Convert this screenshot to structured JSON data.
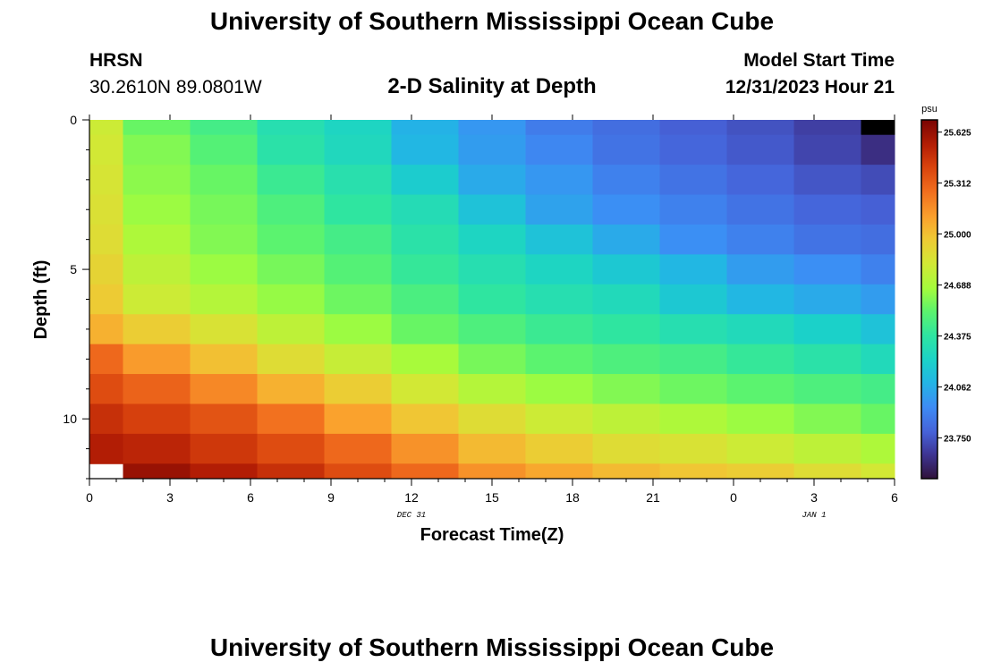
{
  "header": {
    "title": "University of Southern Mississippi Ocean Cube",
    "station": "HRSN",
    "coords": "30.2610N  89.0801W",
    "subtitle": "2-D Salinity at Depth",
    "model_start_label": "Model Start Time",
    "model_start_value": "12/31/2023 Hour 21"
  },
  "footer": {
    "title": "University of Southern Mississippi Ocean Cube"
  },
  "chart_data": {
    "type": "heatmap",
    "title": "2-D Salinity at Depth",
    "xlabel": "Forecast Time(Z)",
    "ylabel": "Depth (ft)",
    "x_tick_labels": [
      "0",
      "3",
      "6",
      "9",
      "12",
      "15",
      "18",
      "21",
      "0",
      "3",
      "6"
    ],
    "x_date_labels": [
      {
        "text": "DEC 31",
        "hour": 12
      },
      {
        "text": "JAN 1",
        "hour": 27
      }
    ],
    "x_range_hours": [
      0,
      30
    ],
    "y_tick_labels": [
      "0",
      "5",
      "10"
    ],
    "y_range_ft": [
      0,
      12
    ],
    "colorbar": {
      "unit": "psu",
      "min": 23.5,
      "max": 25.7,
      "tick_labels": [
        "25.625",
        "25.312",
        "25.000",
        "24.688",
        "24.375",
        "24.062",
        "23.750"
      ],
      "ticks": [
        25.625,
        25.3125,
        25.0,
        24.6875,
        24.375,
        24.0625,
        23.75
      ]
    },
    "cells": {
      "time_edges_hours": [
        0,
        1.25,
        3.75,
        6.25,
        8.75,
        11.25,
        13.75,
        16.25,
        18.75,
        21.25,
        23.75,
        26.25,
        28.75,
        30
      ],
      "depth_edges_ft": [
        0,
        0.5,
        1.5,
        2.5,
        3.5,
        4.5,
        5.5,
        6.5,
        7.5,
        8.5,
        9.5,
        10.5,
        11.5,
        12
      ],
      "salinity_psu": [
        [
          24.8,
          24.55,
          24.45,
          24.32,
          24.25,
          24.08,
          23.98,
          23.88,
          23.83,
          23.78,
          23.74,
          23.68,
          23.4
        ],
        [
          24.82,
          24.6,
          24.5,
          24.35,
          24.27,
          24.1,
          24.0,
          23.92,
          23.85,
          23.8,
          23.76,
          23.7,
          23.62
        ],
        [
          24.84,
          24.62,
          24.55,
          24.42,
          24.33,
          24.2,
          24.05,
          23.98,
          23.9,
          23.85,
          23.8,
          23.75,
          23.72
        ],
        [
          24.86,
          24.65,
          24.58,
          24.48,
          24.38,
          24.3,
          24.15,
          24.02,
          23.95,
          23.9,
          23.85,
          23.8,
          23.78
        ],
        [
          24.88,
          24.7,
          24.6,
          24.52,
          24.45,
          24.35,
          24.25,
          24.15,
          24.05,
          23.95,
          23.9,
          23.85,
          23.83
        ],
        [
          24.92,
          24.75,
          24.65,
          24.58,
          24.5,
          24.4,
          24.32,
          24.25,
          24.18,
          24.1,
          24.0,
          23.95,
          23.9
        ],
        [
          24.96,
          24.8,
          24.72,
          24.64,
          24.56,
          24.47,
          24.38,
          24.32,
          24.28,
          24.18,
          24.1,
          24.05,
          24.0
        ],
        [
          25.05,
          24.95,
          24.85,
          24.75,
          24.65,
          24.55,
          24.48,
          24.42,
          24.38,
          24.32,
          24.28,
          24.22,
          24.15
        ],
        [
          25.28,
          25.12,
          25.0,
          24.88,
          24.78,
          24.68,
          24.58,
          24.52,
          24.48,
          24.45,
          24.4,
          24.35,
          24.28
        ],
        [
          25.38,
          25.3,
          25.18,
          25.05,
          24.95,
          24.82,
          24.72,
          24.65,
          24.6,
          24.56,
          24.52,
          24.48,
          24.45
        ],
        [
          25.48,
          25.42,
          25.35,
          25.25,
          25.1,
          24.98,
          24.88,
          24.8,
          24.75,
          24.7,
          24.65,
          24.6,
          24.55
        ],
        [
          25.55,
          25.52,
          25.45,
          25.38,
          25.28,
          25.15,
          25.02,
          24.95,
          24.88,
          24.85,
          24.8,
          24.75,
          24.7
        ],
        [
          null,
          25.62,
          25.55,
          25.48,
          25.38,
          25.28,
          25.15,
          25.08,
          25.02,
          24.98,
          24.95,
          24.88,
          24.82
        ]
      ]
    }
  }
}
